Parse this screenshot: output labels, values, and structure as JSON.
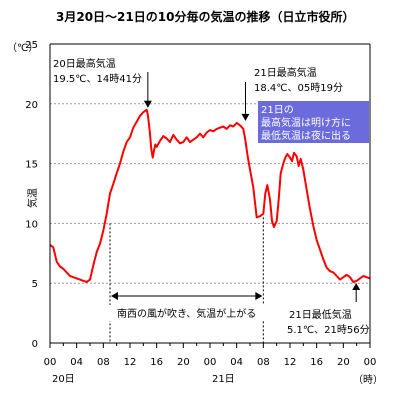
{
  "chart_data": {
    "type": "line",
    "title": "3月20日～21日の10分毎の気温の推移（日立市役所）",
    "unit_label": "（℃）",
    "ylabel": "気温",
    "xlabel_unit": "（時）",
    "ylim": [
      0,
      25
    ],
    "yticks": [
      0,
      5,
      10,
      15,
      20,
      25
    ],
    "xlim": [
      0,
      48
    ],
    "xticks": [
      {
        "x": 0,
        "label": "00"
      },
      {
        "x": 4,
        "label": "04"
      },
      {
        "x": 8,
        "label": "08"
      },
      {
        "x": 12,
        "label": "12"
      },
      {
        "x": 16,
        "label": "16"
      },
      {
        "x": 20,
        "label": "20"
      },
      {
        "x": 24,
        "label": "00"
      },
      {
        "x": 28,
        "label": "04"
      },
      {
        "x": 32,
        "label": "08"
      },
      {
        "x": 36,
        "label": "12"
      },
      {
        "x": 40,
        "label": "16"
      },
      {
        "x": 44,
        "label": "20"
      },
      {
        "x": 48,
        "label": "00"
      }
    ],
    "day_labels": [
      {
        "x": 2,
        "label": "20日"
      },
      {
        "x": 26,
        "label": "21日"
      }
    ],
    "grid": true,
    "series": [
      {
        "color": "#ff0000",
        "x": [
          0,
          0.5,
          1,
          1.5,
          2,
          2.5,
          3,
          3.5,
          4,
          4.5,
          5,
          5.5,
          6,
          6.5,
          7,
          7.5,
          8,
          8.5,
          9,
          9.5,
          10,
          10.5,
          11,
          11.5,
          12,
          12.5,
          13,
          13.5,
          14,
          14.5,
          14.7,
          15,
          15.2,
          15.4,
          15.6,
          15.8,
          16,
          16.5,
          17,
          17.5,
          18,
          18.5,
          19,
          19.5,
          20,
          20.5,
          21,
          21.5,
          22,
          22.5,
          23,
          23.5,
          24,
          24.5,
          25,
          25.5,
          26,
          26.5,
          27,
          27.5,
          28,
          28.5,
          29,
          29.3,
          29.6,
          30,
          30.5,
          31,
          31.5,
          32,
          32.3,
          32.6,
          33,
          33.3,
          33.6,
          34,
          34.3,
          34.6,
          35,
          35.3,
          35.6,
          36,
          36.3,
          36.6,
          37,
          37.3,
          37.6,
          38,
          38.3,
          38.6,
          39,
          39.5,
          40,
          40.5,
          41,
          41.5,
          42,
          42.5,
          43,
          43.5,
          44,
          44.5,
          45,
          45.5,
          46,
          46.5,
          47,
          47.5,
          48
        ],
        "y": [
          8.2,
          8.0,
          6.8,
          6.4,
          6.2,
          5.9,
          5.6,
          5.5,
          5.4,
          5.3,
          5.2,
          5.1,
          5.3,
          6.5,
          7.6,
          8.3,
          9.4,
          10.8,
          12.5,
          13.3,
          14.2,
          15.0,
          16.0,
          16.8,
          17.2,
          18.0,
          18.5,
          19.0,
          19.3,
          19.5,
          19.0,
          17.5,
          16.2,
          15.5,
          16.1,
          16.6,
          16.4,
          16.9,
          17.3,
          17.1,
          16.8,
          17.4,
          17.0,
          16.7,
          16.8,
          17.2,
          16.8,
          17.0,
          17.2,
          17.5,
          17.2,
          17.6,
          17.8,
          17.7,
          17.9,
          18.0,
          18.1,
          17.9,
          18.2,
          18.1,
          18.4,
          18.2,
          17.9,
          17.0,
          15.8,
          14.5,
          13.0,
          10.5,
          10.6,
          10.8,
          12.5,
          13.2,
          12.0,
          10.2,
          9.7,
          10.2,
          12.0,
          14.2,
          15.0,
          15.5,
          15.8,
          15.5,
          15.2,
          15.9,
          15.6,
          14.8,
          15.4,
          14.5,
          13.5,
          12.5,
          11.2,
          9.8,
          8.6,
          7.8,
          7.0,
          6.3,
          6.0,
          5.9,
          5.6,
          5.3,
          5.5,
          5.7,
          5.5,
          5.1,
          5.2,
          5.4,
          5.6,
          5.5,
          5.4
        ]
      }
    ],
    "annotations": [
      {
        "line1": "20日最高気温",
        "line2": "19.5℃、14時41分",
        "x": 14.68,
        "y": 19.5
      },
      {
        "line1": "21日最高気温",
        "line2": "18.4℃、05時19分",
        "x": 29.32,
        "y": 18.4
      },
      {
        "line1": "21日最低気温",
        "line2": "5.1℃、21時56分",
        "x": 45.93,
        "y": 5.1
      }
    ],
    "note_box": {
      "lines": [
        "21日の",
        "最高気温は明け方に",
        "最低気温は夜に出る"
      ],
      "bg": "#6b6bdc",
      "fg": "#ffffff"
    },
    "span_annotation": {
      "text": "南西の風が吹き、気温が上がる",
      "x_start": 9,
      "x_end": 32
    }
  }
}
